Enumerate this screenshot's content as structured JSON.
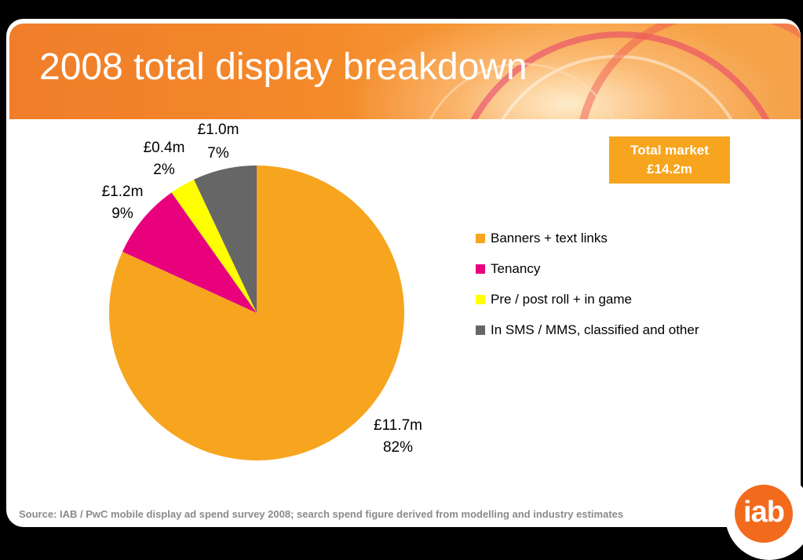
{
  "title": "2008 total display breakdown",
  "total_box": {
    "line1": "Total market",
    "line2": "£14.2m"
  },
  "source": "Source: IAB / PwC mobile display ad spend survey 2008; search spend figure derived from modelling and industry estimates",
  "logo_text": "iab",
  "colors": {
    "banner": "#f48a2a",
    "accent": "#f7a51f"
  },
  "chart_data": {
    "type": "pie",
    "title": "",
    "series": [
      {
        "name": "Banners + text links",
        "value_label": "£11.7m",
        "value": 11.7,
        "percent": 82,
        "percent_label": "82%",
        "color": "#f7a51f"
      },
      {
        "name": "Tenancy",
        "value_label": "£1.2m",
        "value": 1.2,
        "percent": 9,
        "percent_label": "9%",
        "color": "#e8007d"
      },
      {
        "name": "Pre / post roll + in game",
        "value_label": "£0.4m",
        "value": 0.4,
        "percent": 2,
        "percent_label": "2%",
        "color": "#ffff00"
      },
      {
        "name": "In SMS / MMS, classified and other",
        "value_label": "£1.0m",
        "value": 1.0,
        "percent": 7,
        "percent_label": "7%",
        "color": "#666666"
      }
    ],
    "legend_position": "right"
  }
}
